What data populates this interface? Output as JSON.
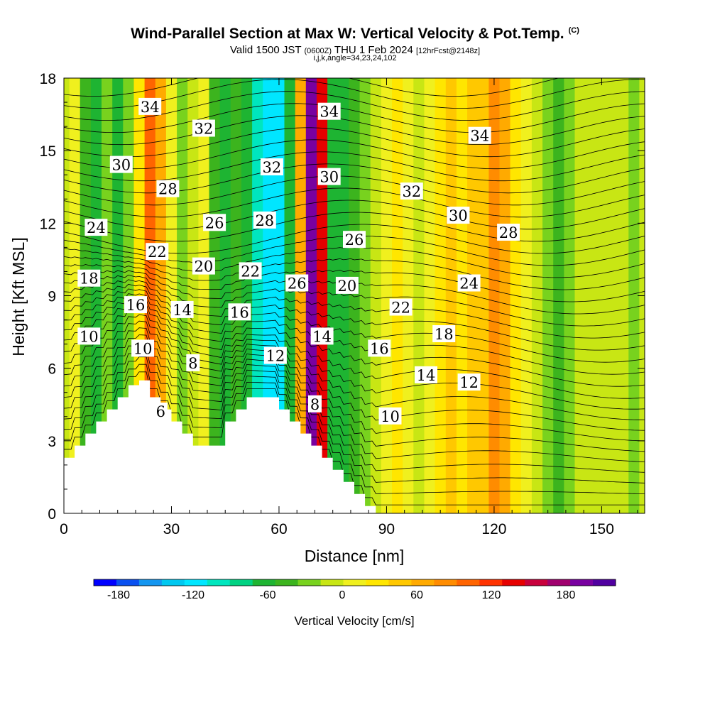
{
  "title": {
    "main": "Wind-Parallel Section at Max W: Vertical Velocity & Pot.Temp.",
    "copyright": "(C)",
    "valid_prefix": "Valid 1500 JST",
    "valid_utc": "(0600Z)",
    "valid_date": "THU 1 Feb 2024",
    "forecast": "[12hrFcst@2148z]",
    "indices": "i,j,k,angle=34,23,24,102"
  },
  "chart_data": {
    "type": "heatmap",
    "title": "Wind-Parallel Section at Max W: Vertical Velocity & Pot.Temp.",
    "xlabel": "Distance [nm]",
    "ylabel": "Height [Kft MSL]",
    "xlim": [
      0,
      162
    ],
    "ylim": [
      0,
      18
    ],
    "x_ticks": [
      0,
      30,
      60,
      90,
      120,
      150
    ],
    "y_ticks": [
      0,
      3,
      6,
      9,
      12,
      15,
      18
    ],
    "colorbar": {
      "label": "Vertical Velocity [cm/s]",
      "ticks": [
        -180,
        -120,
        -60,
        0,
        60,
        120,
        180
      ],
      "range": [
        -200,
        220
      ],
      "colors": [
        "#0000ff",
        "#0a50f0",
        "#1496f0",
        "#00c8f0",
        "#00e6ff",
        "#00e6be",
        "#00d282",
        "#1eb432",
        "#3cb41e",
        "#78d21e",
        "#c8e614",
        "#f0f01e",
        "#ffe600",
        "#ffc800",
        "#ffaa00",
        "#ff8c00",
        "#ff6400",
        "#ff3200",
        "#e60000",
        "#c8003c",
        "#a0006e",
        "#7800a0",
        "#5000a0"
      ]
    },
    "vertical_velocity_columns": [
      {
        "x": 0,
        "w": 0
      },
      {
        "x": 3,
        "w": 10
      },
      {
        "x": 6,
        "w": -45
      },
      {
        "x": 9,
        "w": -60
      },
      {
        "x": 12,
        "w": -35
      },
      {
        "x": 15,
        "w": -55
      },
      {
        "x": 18,
        "w": -30
      },
      {
        "x": 21,
        "w": 20
      },
      {
        "x": 24,
        "w": 95
      },
      {
        "x": 27,
        "w": 60
      },
      {
        "x": 30,
        "w": 5
      },
      {
        "x": 33,
        "w": -35
      },
      {
        "x": 36,
        "w": -15
      },
      {
        "x": 39,
        "w": 5
      },
      {
        "x": 42,
        "w": -40
      },
      {
        "x": 45,
        "w": -60
      },
      {
        "x": 48,
        "w": -40
      },
      {
        "x": 51,
        "w": -70
      },
      {
        "x": 54,
        "w": -100
      },
      {
        "x": 57,
        "w": -120
      },
      {
        "x": 60,
        "w": -110
      },
      {
        "x": 63,
        "w": -70
      },
      {
        "x": 66,
        "w": 60
      },
      {
        "x": 69,
        "w": 200
      },
      {
        "x": 72,
        "w": 130
      },
      {
        "x": 75,
        "w": -70
      },
      {
        "x": 78,
        "w": -55
      },
      {
        "x": 81,
        "w": -40
      },
      {
        "x": 84,
        "w": -25
      },
      {
        "x": 87,
        "w": -10
      },
      {
        "x": 90,
        "w": 15
      },
      {
        "x": 93,
        "w": 35
      },
      {
        "x": 96,
        "w": 15
      },
      {
        "x": 99,
        "w": -5
      },
      {
        "x": 102,
        "w": 5
      },
      {
        "x": 105,
        "w": 25
      },
      {
        "x": 108,
        "w": 40
      },
      {
        "x": 111,
        "w": 25
      },
      {
        "x": 114,
        "w": 40
      },
      {
        "x": 117,
        "w": 55
      },
      {
        "x": 120,
        "w": 80
      },
      {
        "x": 123,
        "w": 65
      },
      {
        "x": 126,
        "w": 30
      },
      {
        "x": 129,
        "w": 10
      },
      {
        "x": 132,
        "w": -10
      },
      {
        "x": 135,
        "w": -30
      },
      {
        "x": 138,
        "w": -45
      },
      {
        "x": 141,
        "w": -30
      },
      {
        "x": 144,
        "w": -10
      },
      {
        "x": 147,
        "w": 0
      },
      {
        "x": 150,
        "w": -5
      },
      {
        "x": 153,
        "w": 0
      },
      {
        "x": 156,
        "w": -15
      },
      {
        "x": 159,
        "w": -20
      },
      {
        "x": 162,
        "w": -15
      }
    ],
    "terrain_profile": [
      [
        0,
        2.3
      ],
      [
        3,
        2.3
      ],
      [
        3,
        2.8
      ],
      [
        6,
        2.8
      ],
      [
        6,
        3.3
      ],
      [
        9,
        3.3
      ],
      [
        9,
        3.8
      ],
      [
        12,
        3.8
      ],
      [
        12,
        4.3
      ],
      [
        15,
        4.3
      ],
      [
        15,
        4.8
      ],
      [
        18,
        4.8
      ],
      [
        18,
        5.3
      ],
      [
        21,
        5.3
      ],
      [
        21,
        5.5
      ],
      [
        24,
        5.5
      ],
      [
        24,
        4.8
      ],
      [
        27,
        4.8
      ],
      [
        27,
        4.3
      ],
      [
        30,
        4.3
      ],
      [
        30,
        3.8
      ],
      [
        33,
        3.8
      ],
      [
        33,
        3.3
      ],
      [
        36,
        3.3
      ],
      [
        36,
        2.8
      ],
      [
        45,
        2.8
      ],
      [
        45,
        3.8
      ],
      [
        48,
        3.8
      ],
      [
        48,
        4.3
      ],
      [
        51,
        4.3
      ],
      [
        51,
        4.8
      ],
      [
        60,
        4.8
      ],
      [
        60,
        4.3
      ],
      [
        63,
        4.3
      ],
      [
        63,
        3.8
      ],
      [
        66,
        3.8
      ],
      [
        66,
        3.3
      ],
      [
        69,
        3.3
      ],
      [
        69,
        2.8
      ],
      [
        72,
        2.8
      ],
      [
        72,
        2.3
      ],
      [
        75,
        2.3
      ],
      [
        75,
        1.8
      ],
      [
        78,
        1.8
      ],
      [
        78,
        1.3
      ],
      [
        81,
        1.3
      ],
      [
        81,
        0.8
      ],
      [
        84,
        0.8
      ],
      [
        84,
        0.3
      ],
      [
        87,
        0.3
      ],
      [
        87,
        0.0
      ]
    ],
    "theta_contour_labels": [
      {
        "value": "34",
        "x": 24,
        "y": 16.8
      },
      {
        "value": "32",
        "x": 39,
        "y": 15.9
      },
      {
        "value": "30",
        "x": 16,
        "y": 14.4
      },
      {
        "value": "28",
        "x": 29,
        "y": 13.4
      },
      {
        "value": "26",
        "x": 42,
        "y": 12.0
      },
      {
        "value": "24",
        "x": 9,
        "y": 11.8
      },
      {
        "value": "22",
        "x": 26,
        "y": 10.8
      },
      {
        "value": "20",
        "x": 39,
        "y": 10.2
      },
      {
        "value": "18",
        "x": 7,
        "y": 9.7
      },
      {
        "value": "16",
        "x": 20,
        "y": 8.6
      },
      {
        "value": "14",
        "x": 33,
        "y": 8.4
      },
      {
        "value": "10",
        "x": 7,
        "y": 7.3
      },
      {
        "value": "10",
        "x": 22,
        "y": 6.8
      },
      {
        "value": "8",
        "x": 36,
        "y": 6.2
      },
      {
        "value": "6",
        "x": 27,
        "y": 4.2
      },
      {
        "value": "22",
        "x": 52,
        "y": 10.0
      },
      {
        "value": "16",
        "x": 49,
        "y": 8.3
      },
      {
        "value": "32",
        "x": 58,
        "y": 14.3
      },
      {
        "value": "28",
        "x": 56,
        "y": 12.1
      },
      {
        "value": "26",
        "x": 65,
        "y": 9.5
      },
      {
        "value": "12",
        "x": 59,
        "y": 6.5
      },
      {
        "value": "34",
        "x": 74,
        "y": 16.6
      },
      {
        "value": "30",
        "x": 74,
        "y": 13.9
      },
      {
        "value": "26",
        "x": 81,
        "y": 11.3
      },
      {
        "value": "20",
        "x": 79,
        "y": 9.4
      },
      {
        "value": "14",
        "x": 72,
        "y": 7.3
      },
      {
        "value": "8",
        "x": 70,
        "y": 4.5
      },
      {
        "value": "16",
        "x": 88,
        "y": 6.8
      },
      {
        "value": "22",
        "x": 94,
        "y": 8.5
      },
      {
        "value": "32",
        "x": 97,
        "y": 13.3
      },
      {
        "value": "34",
        "x": 116,
        "y": 15.6
      },
      {
        "value": "30",
        "x": 110,
        "y": 12.3
      },
      {
        "value": "28",
        "x": 124,
        "y": 11.6
      },
      {
        "value": "24",
        "x": 113,
        "y": 9.5
      },
      {
        "value": "18",
        "x": 106,
        "y": 7.4
      },
      {
        "value": "14",
        "x": 101,
        "y": 5.7
      },
      {
        "value": "12",
        "x": 113,
        "y": 5.4
      },
      {
        "value": "10",
        "x": 91,
        "y": 4.0
      }
    ]
  }
}
